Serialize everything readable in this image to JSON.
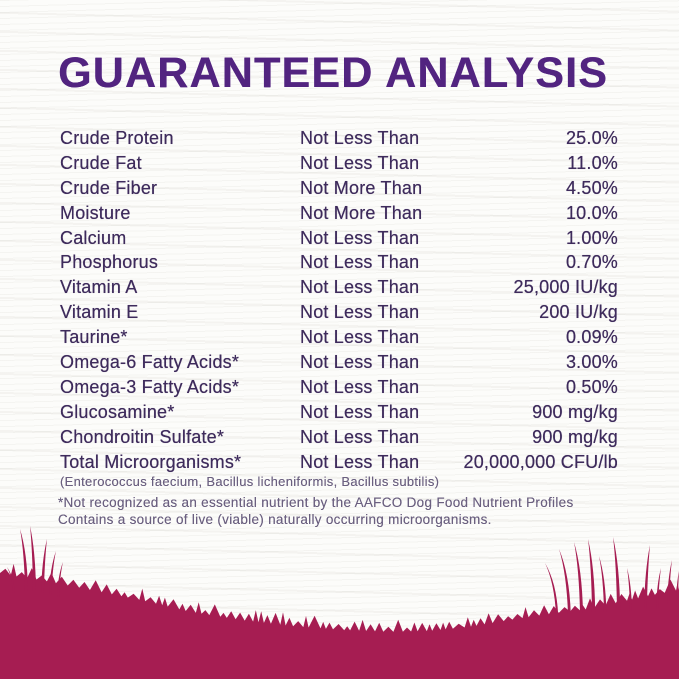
{
  "title": "GUARANTEED ANALYSIS",
  "colors": {
    "title_color": "#522480",
    "text_color": "#3E2B5C",
    "muted_color": "#6B6080",
    "grass_color": "#A61D52"
  },
  "table": {
    "rows": [
      {
        "name": "Crude Protein",
        "qualifier": "Not Less Than",
        "value": "25.0%"
      },
      {
        "name": "Crude Fat",
        "qualifier": "Not Less Than",
        "value": "11.0%"
      },
      {
        "name": "Crude Fiber",
        "qualifier": "Not More Than",
        "value": "4.50%"
      },
      {
        "name": "Moisture",
        "qualifier": "Not More Than",
        "value": "10.0%"
      },
      {
        "name": "Calcium",
        "qualifier": "Not Less Than",
        "value": "1.00%"
      },
      {
        "name": "Phosphorus",
        "qualifier": "Not Less Than",
        "value": "0.70%"
      },
      {
        "name": "Vitamin A",
        "qualifier": "Not Less Than",
        "value": "25,000 IU/kg"
      },
      {
        "name": "Vitamin E",
        "qualifier": "Not Less Than",
        "value": "200 IU/kg"
      },
      {
        "name": "Taurine*",
        "qualifier": "Not Less Than",
        "value": "0.09%"
      },
      {
        "name": "Omega-6 Fatty Acids*",
        "qualifier": "Not Less Than",
        "value": "3.00%"
      },
      {
        "name": "Omega-3 Fatty Acids*",
        "qualifier": "Not Less Than",
        "value": "0.50%"
      },
      {
        "name": "Glucosamine*",
        "qualifier": "Not Less Than",
        "value": "900 mg/kg"
      },
      {
        "name": "Chondroitin Sulfate*",
        "qualifier": "Not Less Than",
        "value": "900 mg/kg"
      },
      {
        "name": "Total Microorganisms*",
        "qualifier": "Not Less Than",
        "value": "20,000,000 CFU/lb"
      }
    ],
    "microorganisms_note": "(Enterococcus faecium, Bacillus licheniformis, Bacillus subtilis)"
  },
  "footnotes": {
    "line1": "*Not recognized as an essential nutrient by the AAFCO Dog Food Nutrient Profiles",
    "line2": "Contains a source of live (viable) naturally occurring microorganisms."
  }
}
